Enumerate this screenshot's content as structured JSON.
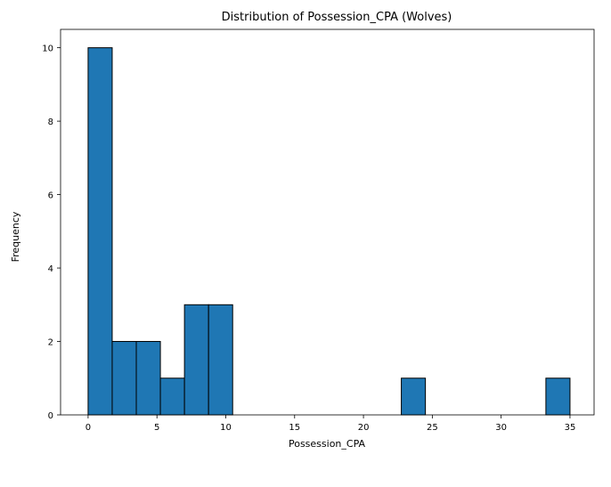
{
  "chart_data": {
    "type": "bar",
    "title": "Distribution of Possession_CPA (Wolves)",
    "xlabel": "Possession_CPA",
    "ylabel": "Frequency",
    "xlim": [
      -2.0,
      36.75
    ],
    "ylim": [
      0,
      10.5
    ],
    "xticks": [
      0,
      5,
      10,
      15,
      20,
      25,
      30,
      35
    ],
    "yticks": [
      0,
      2,
      4,
      6,
      8,
      10
    ],
    "bin_edges": [
      0,
      1.75,
      3.5,
      5.25,
      7.0,
      8.75,
      10.5,
      12.25,
      14.0,
      15.75,
      17.5,
      19.25,
      21.0,
      22.75,
      24.5,
      26.25,
      28.0,
      29.75,
      31.5,
      33.25,
      35.0
    ],
    "values": [
      10,
      2,
      2,
      1,
      3,
      3,
      0,
      0,
      0,
      0,
      0,
      0,
      0,
      1,
      0,
      0,
      0,
      0,
      0,
      1
    ],
    "bar_color": "#1f77b4",
    "edge_color": "#000000",
    "grid": false
  }
}
